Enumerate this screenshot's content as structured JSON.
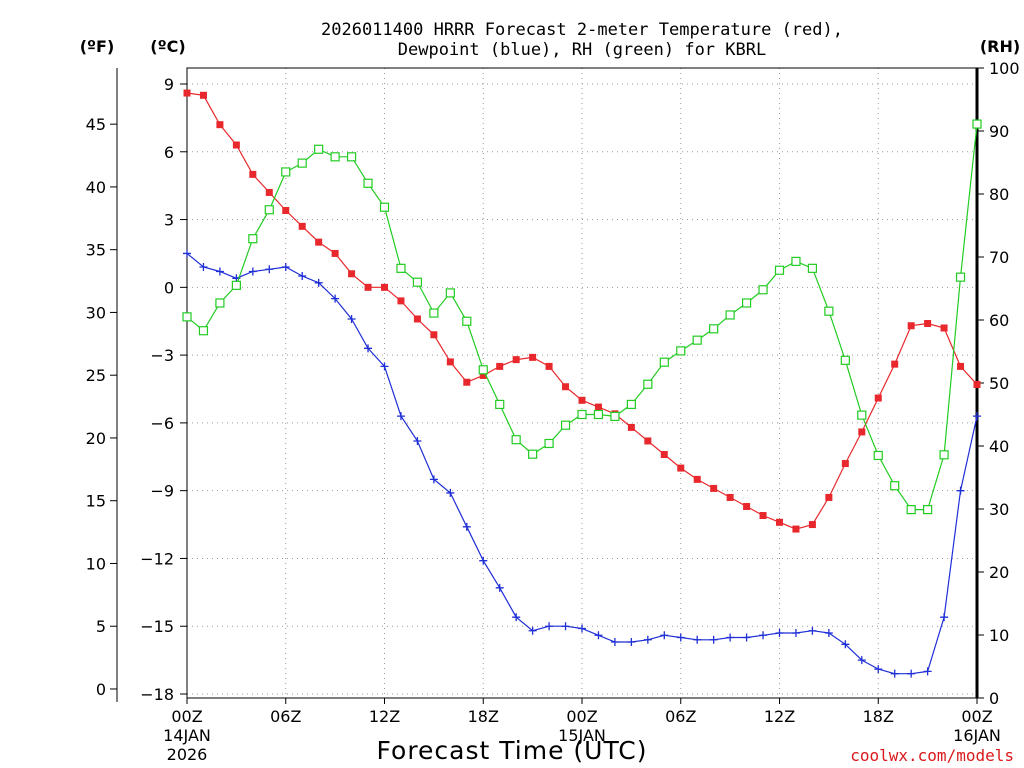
{
  "chart_data": {
    "type": "line",
    "title_line1": "2026011400 HRRR Forecast 2-meter Temperature (red),",
    "title_line2": "Dewpoint (blue), RH (green) for KBRL",
    "xlabel": "Forecast Time (UTC)",
    "credit": "coolwx.com/models",
    "units": {
      "fahrenheit": "(ºF)",
      "celsius": "(ºC)",
      "rh": "(RH)"
    },
    "x_ticks": [
      {
        "hour": 0,
        "label": "00Z",
        "sub1": "14JAN",
        "sub2": "2026"
      },
      {
        "hour": 6,
        "label": "06Z"
      },
      {
        "hour": 12,
        "label": "12Z"
      },
      {
        "hour": 18,
        "label": "18Z"
      },
      {
        "hour": 24,
        "label": "00Z",
        "sub1": "15JAN"
      },
      {
        "hour": 30,
        "label": "06Z"
      },
      {
        "hour": 36,
        "label": "12Z"
      },
      {
        "hour": 42,
        "label": "18Z"
      },
      {
        "hour": 48,
        "label": "00Z",
        "sub1": "16JAN"
      }
    ],
    "celsius_ticks": [
      "9",
      "6",
      "3",
      "0",
      "−3",
      "−6",
      "−9",
      "−12",
      "−15",
      "−18"
    ],
    "celsius_values": [
      9,
      6,
      3,
      0,
      -3,
      -6,
      -9,
      -12,
      -15,
      -18
    ],
    "fahrenheit_ticks": [
      "45",
      "40",
      "35",
      "30",
      "25",
      "20",
      "15",
      "10",
      "5",
      "0"
    ],
    "fahrenheit_values": [
      45,
      40,
      35,
      30,
      25,
      20,
      15,
      10,
      5,
      0
    ],
    "rh_ticks": [
      "100",
      "90",
      "80",
      "70",
      "60",
      "50",
      "40",
      "30",
      "20",
      "10",
      "0"
    ],
    "rh_values": [
      100,
      90,
      80,
      70,
      60,
      50,
      40,
      30,
      20,
      10,
      0
    ],
    "ylim_celsius": [
      -18.2,
      9.2
    ],
    "ylim_rh": [
      0,
      100
    ],
    "xlim_hours": [
      0,
      48
    ],
    "colors": {
      "temperature": "#e8282c",
      "dewpoint": "#1f2fd6",
      "rh": "#22cc22",
      "grid": "#9a9a9a"
    },
    "series": [
      {
        "name": "Temperature (°C)",
        "axis": "celsius",
        "marker": "filled-square",
        "values": [
          8.6,
          8.5,
          7.2,
          6.3,
          5.0,
          4.2,
          3.4,
          2.7,
          2.0,
          1.5,
          0.6,
          0.0,
          0.0,
          -0.6,
          -1.4,
          -2.1,
          -3.3,
          -4.2,
          -3.9,
          -3.5,
          -3.2,
          -3.1,
          -3.5,
          -4.4,
          -5.0,
          -5.3,
          -5.6,
          -6.2,
          -6.8,
          -7.4,
          -8.0,
          -8.5,
          -8.9,
          -9.3,
          -9.7,
          -10.1,
          -10.4,
          -10.7,
          -10.5,
          -9.3,
          -7.8,
          -6.4,
          -4.9,
          -3.4,
          -1.7,
          -1.6,
          -1.8,
          -3.5,
          -4.3
        ]
      },
      {
        "name": "Dewpoint (°C)",
        "axis": "celsius",
        "marker": "plus",
        "values": [
          1.5,
          0.9,
          0.7,
          0.4,
          0.7,
          0.8,
          0.9,
          0.5,
          0.2,
          -0.5,
          -1.4,
          -2.7,
          -3.5,
          -5.7,
          -6.8,
          -8.5,
          -9.1,
          -10.6,
          -12.1,
          -13.3,
          -14.6,
          -15.2,
          -15.0,
          -15.0,
          -15.1,
          -15.4,
          -15.7,
          -15.7,
          -15.6,
          -15.4,
          -15.5,
          -15.6,
          -15.6,
          -15.5,
          -15.5,
          -15.4,
          -15.3,
          -15.3,
          -15.2,
          -15.3,
          -15.8,
          -16.5,
          -16.9,
          -17.1,
          -17.1,
          -17.0,
          -14.6,
          -9.0,
          -5.7
        ]
      },
      {
        "name": "RH (%)",
        "axis": "rh",
        "marker": "open-square",
        "values": [
          60.5,
          58.3,
          62.7,
          65.5,
          72.9,
          77.5,
          83.5,
          84.9,
          87.1,
          85.9,
          85.9,
          81.7,
          77.9,
          68.2,
          66.0,
          61.1,
          64.3,
          59.8,
          52.1,
          46.6,
          41.0,
          38.7,
          40.4,
          43.3,
          45.0,
          45.0,
          44.7,
          46.6,
          49.8,
          53.3,
          55.1,
          56.8,
          58.6,
          60.8,
          62.7,
          64.8,
          67.9,
          69.3,
          68.2,
          61.4,
          53.6,
          44.9,
          38.5,
          33.7,
          29.9,
          29.9,
          38.6,
          66.8,
          91.1
        ]
      }
    ]
  }
}
